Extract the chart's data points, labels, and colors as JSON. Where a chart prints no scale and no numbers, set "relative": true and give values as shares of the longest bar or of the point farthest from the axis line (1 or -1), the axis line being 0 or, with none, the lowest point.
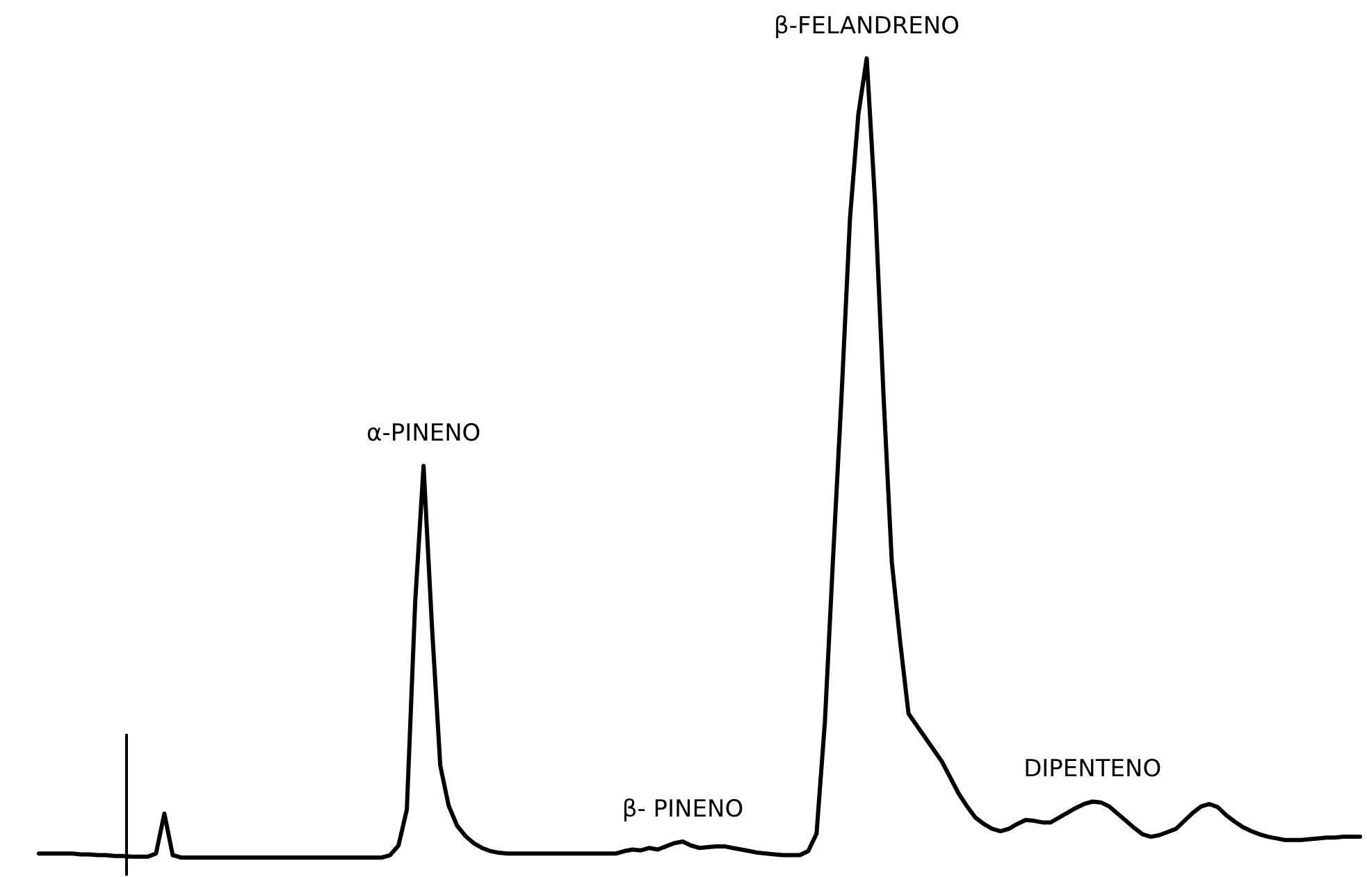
{
  "chart_data": {
    "type": "line",
    "relative": true,
    "color": "#000000",
    "marker": "none",
    "line_style": "solid",
    "categories": [
      null,
      null,
      null,
      null,
      null,
      null,
      null,
      null,
      null,
      null,
      null,
      null,
      null,
      null,
      null,
      null,
      null,
      null,
      null,
      null,
      null,
      null,
      null,
      null,
      null,
      null,
      null,
      null,
      null,
      null,
      null,
      null,
      null,
      null,
      null,
      null,
      null,
      null,
      null,
      null,
      null,
      null,
      null,
      null,
      null,
      null,
      null,
      null,
      null,
      null,
      null,
      null,
      null,
      null,
      null,
      null,
      null,
      null,
      null,
      null,
      null,
      null,
      null,
      null,
      null,
      null,
      null,
      null,
      null,
      null,
      null,
      null,
      null,
      null,
      null,
      null,
      null,
      null,
      null,
      null,
      null,
      null,
      null,
      null,
      null,
      null,
      null,
      null,
      null,
      null,
      null,
      null,
      null,
      null,
      null,
      null,
      null,
      null,
      null,
      null,
      null,
      null,
      null,
      null,
      null,
      null,
      null,
      null,
      null,
      null,
      null,
      null,
      null,
      null,
      null,
      null,
      null,
      null,
      null,
      null,
      null,
      null,
      null,
      null,
      null,
      null,
      null,
      null,
      null,
      null,
      null,
      null,
      null,
      null,
      null,
      null,
      null,
      null,
      null,
      null,
      null,
      null,
      null,
      null,
      null,
      null,
      null,
      null,
      null,
      null,
      null,
      null,
      null,
      null,
      null,
      null,
      null,
      null,
      null
    ],
    "values": [
      0.005,
      0.005,
      0.005,
      0.005,
      0.005,
      0.004,
      0.004,
      0.003,
      0.003,
      0.002,
      0.002,
      0.001,
      0.001,
      0.001,
      0.005,
      0.055,
      0.003,
      0,
      0,
      0,
      0,
      0,
      0,
      0,
      0,
      0,
      0,
      0,
      0,
      0,
      0,
      0,
      0,
      0,
      0,
      0,
      0,
      0,
      0,
      0,
      0,
      0,
      0.003,
      0.015,
      0.06,
      0.32,
      0.49,
      0.29,
      0.115,
      0.065,
      0.04,
      0.027,
      0.018,
      0.012,
      0.008,
      0.006,
      0.005,
      0.005,
      0.005,
      0.005,
      0.005,
      0.005,
      0.005,
      0.005,
      0.005,
      0.005,
      0.005,
      0.005,
      0.005,
      0.005,
      0.008,
      0.01,
      0.009,
      0.012,
      0.01,
      0.014,
      0.018,
      0.02,
      0.015,
      0.012,
      0.013,
      0.014,
      0.014,
      0.012,
      0.01,
      0.008,
      0.006,
      0.005,
      0.004,
      0.003,
      0.003,
      0.003,
      0.008,
      0.03,
      0.17,
      0.38,
      0.58,
      0.8,
      0.93,
      1,
      0.82,
      0.58,
      0.37,
      0.27,
      0.18,
      0.165,
      0.15,
      0.135,
      0.12,
      0.1,
      0.08,
      0.064,
      0.05,
      0.042,
      0.036,
      0.033,
      0.036,
      0.042,
      0.047,
      0.046,
      0.044,
      0.044,
      0.05,
      0.056,
      0.062,
      0.067,
      0.07,
      0.069,
      0.064,
      0.055,
      0.046,
      0.037,
      0.029,
      0.026,
      0.028,
      0.032,
      0.036,
      0.046,
      0.056,
      0.064,
      0.067,
      0.063,
      0.053,
      0.045,
      0.038,
      0.033,
      0.029,
      0.026,
      0.024,
      0.022,
      0.022,
      0.022,
      0.023,
      0.024,
      0.025,
      0.025,
      0.026,
      0.026,
      0.026
    ],
    "annotations": [
      {
        "text": "α-PINENO",
        "y": 0.49
      },
      {
        "text": "β-FELANDRENO",
        "y": 1
      },
      {
        "text": "β- PINENO",
        "y": 0.02
      },
      {
        "text": "DIPENTENO",
        "y": 0.07
      }
    ]
  }
}
